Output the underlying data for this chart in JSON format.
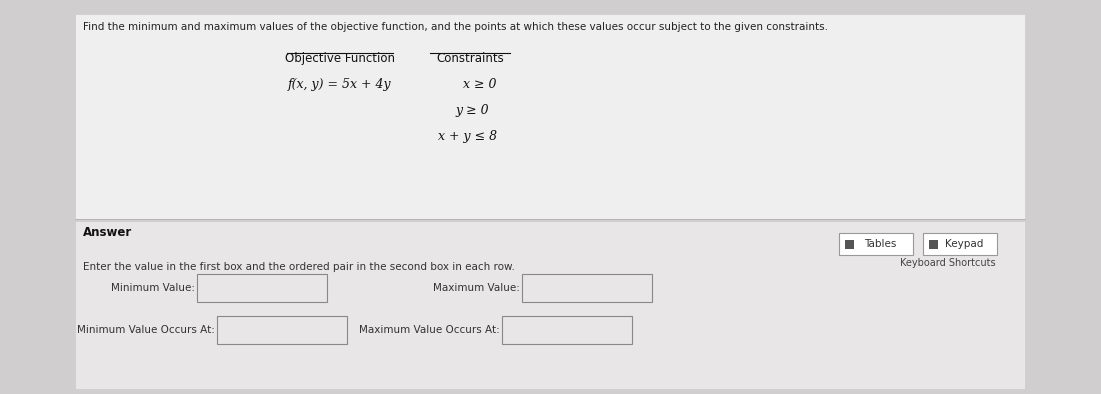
{
  "bg_color": "#d0cece",
  "top_panel_color": "#f0efef",
  "bottom_panel_color": "#e8e6e6",
  "top_text": "Find the minimum and maximum values of the objective function, and the points at which these values occur subject to the given constraints.",
  "obj_func_label": "Objective Function",
  "constraints_label": "Constraints",
  "func_line": "f(x, y) = 5x + 4y",
  "constraint1": "x ≥ 0",
  "constraint2": "y ≥ 0",
  "constraint3": "x + y ≤ 8",
  "answer_label": "Answer",
  "tables_label": "Tables",
  "keypad_label": "Keypad",
  "keyboard_shortcuts": "Keyboard Shortcuts",
  "enter_text": "Enter the value in the first box and the ordered pair in the second box in each row.",
  "min_value_label": "Minimum Value:",
  "max_value_label": "Maximum Value:",
  "min_occurs_label": "Minimum Value Occurs At:",
  "max_occurs_label": "Maximum Value Occurs At:"
}
